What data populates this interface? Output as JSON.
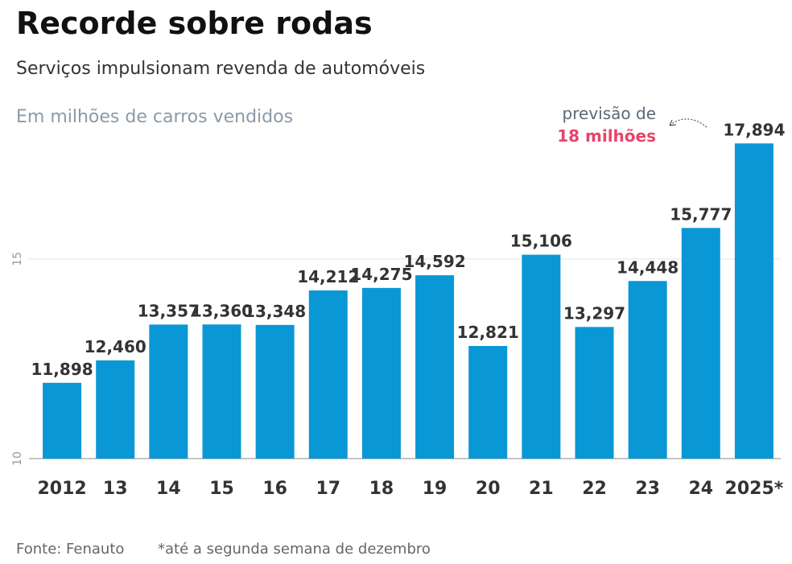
{
  "chart_data": {
    "type": "bar",
    "title": "Recorde sobre rodas",
    "subtitle": "Serviços impulsionam revenda de automóveis",
    "unit_label": "Em milhões de carros vendidos",
    "categories": [
      "2012",
      "13",
      "14",
      "15",
      "16",
      "17",
      "18",
      "19",
      "20",
      "21",
      "22",
      "23",
      "24",
      "2025*"
    ],
    "values": [
      11.898,
      12.46,
      13.357,
      13.36,
      13.348,
      14.212,
      14.275,
      14.592,
      12.821,
      15.106,
      13.297,
      14.448,
      15.777,
      17.894
    ],
    "value_labels": [
      "11,898",
      "12,460",
      "13,357",
      "13,360",
      "13,348",
      "14,212",
      "14,275",
      "14,592",
      "12,821",
      "15,106",
      "13,297",
      "14,448",
      "15,777",
      "17,894"
    ],
    "color": "#0a97d6",
    "ylim": [
      10,
      18
    ],
    "yticks": [
      10,
      15
    ],
    "grid": true,
    "annotation": {
      "line1": "previsão de",
      "line2": "18 milhões"
    },
    "source": "Fonte: Fenauto",
    "note": "*até a segunda semana de dezembro"
  }
}
